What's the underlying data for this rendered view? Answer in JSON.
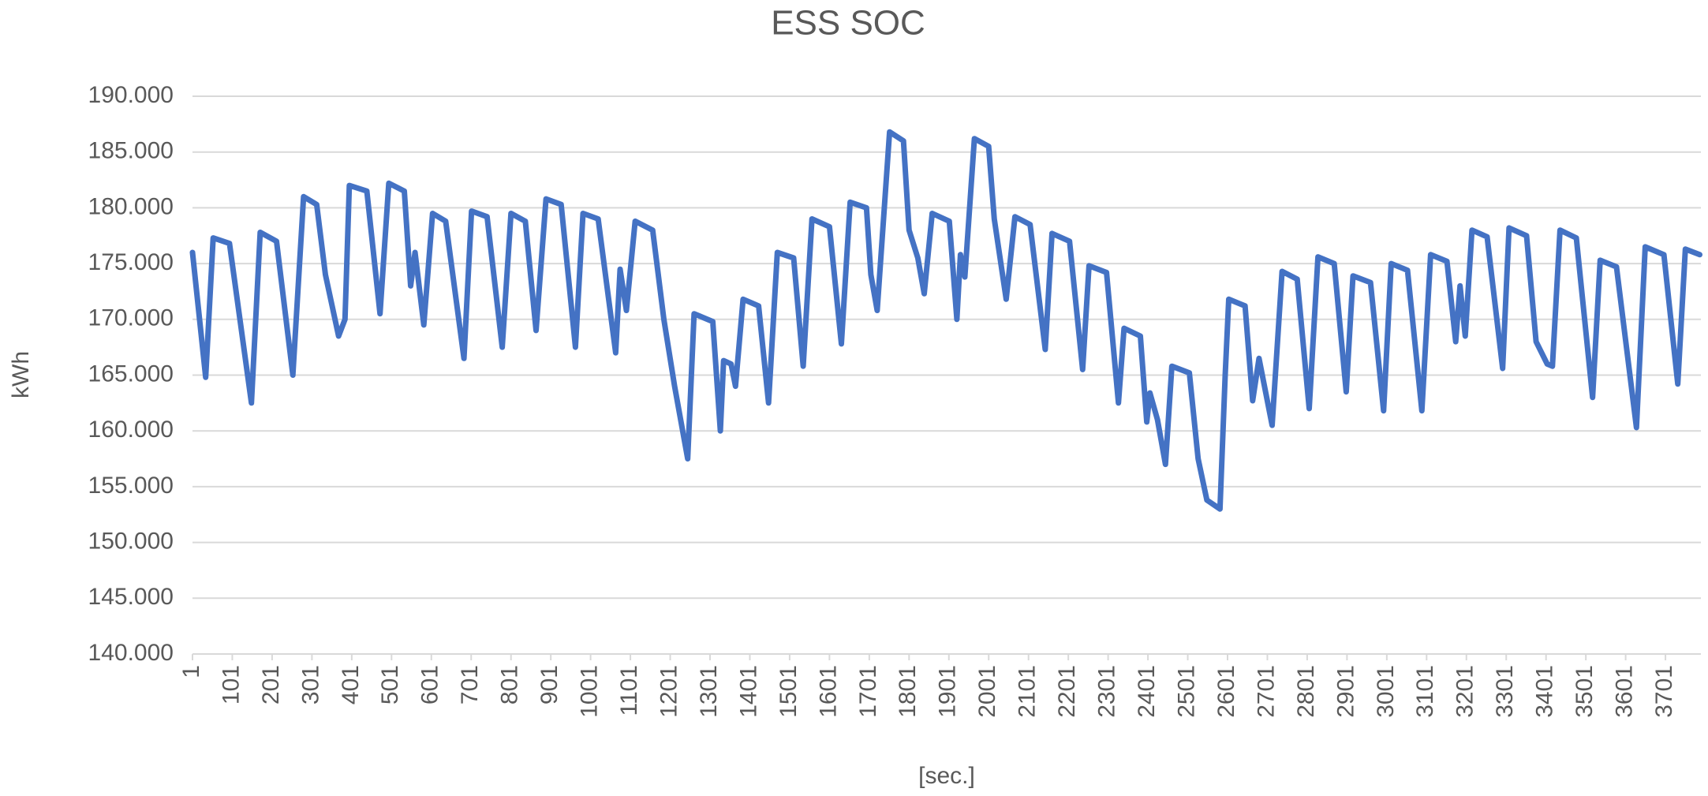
{
  "chart_data": {
    "type": "line",
    "title": "ESS SOC",
    "x_label": "[sec.]",
    "y_label": "kWh",
    "color": "#4472c4",
    "grid": true,
    "x": [
      1,
      34,
      53,
      94,
      149,
      171,
      212,
      253,
      280,
      313,
      335,
      368,
      384,
      395,
      439,
      472,
      494,
      533,
      549,
      560,
      582,
      604,
      637,
      683,
      702,
      741,
      779,
      801,
      837,
      864,
      889,
      927,
      963,
      982,
      1020,
      1064,
      1075,
      1091,
      1113,
      1157,
      1185,
      1212,
      1245,
      1261,
      1308,
      1327,
      1335,
      1354,
      1365,
      1384,
      1423,
      1448,
      1470,
      1511,
      1535,
      1557,
      1601,
      1631,
      1653,
      1694,
      1705,
      1721,
      1752,
      1787,
      1801,
      1823,
      1839,
      1859,
      1902,
      1921,
      1930,
      1941,
      1965,
      2001,
      2015,
      2045,
      2067,
      2105,
      2143,
      2160,
      2204,
      2237,
      2253,
      2297,
      2327,
      2341,
      2382,
      2398,
      2406,
      2425,
      2445,
      2461,
      2505,
      2527,
      2549,
      2582,
      2595,
      2604,
      2645,
      2664,
      2680,
      2713,
      2738,
      2776,
      2806,
      2828,
      2869,
      2899,
      2916,
      2960,
      2993,
      3012,
      3053,
      3089,
      3111,
      3152,
      3174,
      3185,
      3198,
      3215,
      3253,
      3292,
      3308,
      3352,
      3376,
      3404,
      3417,
      3436,
      3477,
      3518,
      3537,
      3578,
      3628,
      3650,
      3697,
      3732,
      3751,
      3787
    ],
    "values": [
      176,
      164.8,
      177.3,
      176.8,
      162.5,
      177.8,
      177,
      165,
      181,
      180.3,
      174,
      168.5,
      170,
      182,
      181.5,
      170.5,
      182.2,
      181.5,
      173,
      176,
      169.5,
      179.5,
      178.8,
      166.5,
      179.7,
      179.2,
      167.5,
      179.5,
      178.8,
      169,
      180.8,
      180.3,
      167.5,
      179.5,
      179,
      167,
      174.5,
      170.8,
      178.8,
      178,
      170,
      164,
      157.5,
      170.5,
      169.8,
      160,
      166.3,
      166,
      164,
      171.8,
      171.2,
      162.5,
      176,
      175.5,
      165.8,
      179,
      178.3,
      167.8,
      180.5,
      180,
      174,
      170.8,
      186.8,
      186,
      178,
      175.5,
      172.3,
      179.5,
      178.8,
      170,
      175.8,
      173.8,
      186.2,
      185.5,
      179,
      171.8,
      179.2,
      178.5,
      167.3,
      177.7,
      177,
      165.5,
      174.8,
      174.2,
      162.5,
      169.2,
      168.5,
      160.8,
      163.4,
      161,
      157,
      165.8,
      165.2,
      157.5,
      153.8,
      153,
      165,
      171.8,
      171.2,
      162.7,
      166.5,
      160.5,
      174.3,
      173.6,
      162,
      175.6,
      175,
      163.5,
      173.9,
      173.3,
      161.8,
      175,
      174.4,
      161.8,
      175.8,
      175.2,
      168,
      173,
      168.5,
      178,
      177.4,
      165.6,
      178.2,
      177.5,
      168,
      166,
      165.8,
      178,
      177.3,
      163,
      175.3,
      174.7,
      160.3,
      176.5,
      175.8,
      164.2,
      176.3,
      175.8
    ],
    "xlim": [
      1,
      3790
    ],
    "xticks": [
      1,
      101,
      201,
      301,
      401,
      501,
      601,
      701,
      801,
      901,
      1001,
      1101,
      1201,
      1301,
      1401,
      1501,
      1601,
      1701,
      1801,
      1901,
      2001,
      2101,
      2201,
      2301,
      2401,
      2501,
      2601,
      2701,
      2801,
      2901,
      3001,
      3101,
      3201,
      3301,
      3401,
      3501,
      3601,
      3701
    ],
    "ylim": [
      140,
      190
    ],
    "yticks": [
      {
        "value": 140,
        "label": "140.000"
      },
      {
        "value": 145,
        "label": "145.000"
      },
      {
        "value": 150,
        "label": "150.000"
      },
      {
        "value": 155,
        "label": "155.000"
      },
      {
        "value": 160,
        "label": "160.000"
      },
      {
        "value": 165,
        "label": "165.000"
      },
      {
        "value": 170,
        "label": "170.000"
      },
      {
        "value": 175,
        "label": "175.000"
      },
      {
        "value": 180,
        "label": "180.000"
      },
      {
        "value": 185,
        "label": "185.000"
      },
      {
        "value": 190,
        "label": "190.000"
      }
    ]
  }
}
